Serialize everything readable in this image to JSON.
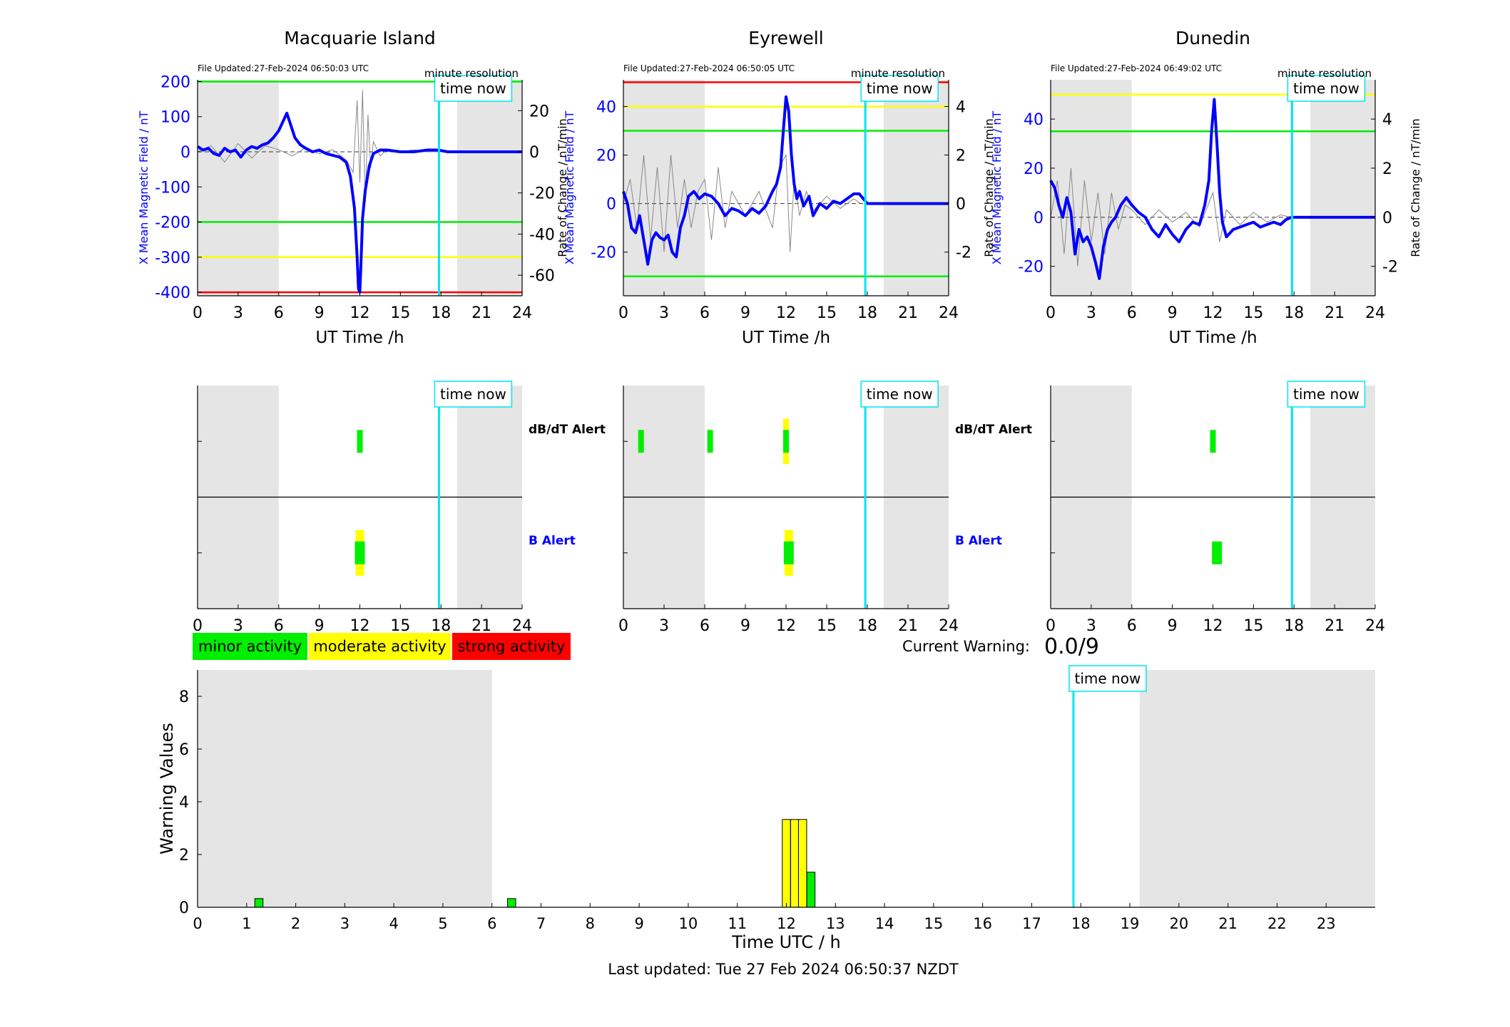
{
  "colors": {
    "night_shade": "#e5e5e5",
    "field_line": "#0000ff",
    "rate_line": "#888888",
    "now_line": "#00e5ee",
    "green": "#00ee00",
    "yellow": "#ffff00",
    "red": "#ff0000"
  },
  "labels": {
    "time_now": "time now",
    "minute_resolution": "minute resolution",
    "ut_xlabel": "UT Time /h",
    "left_ylabel": "X Mean Magnetic Field / nT",
    "right_ylabel": "Rate of Change / nT/min",
    "dbdt_alert": "dB/dT Alert",
    "b_alert": "B Alert",
    "current_warning_label": "Current Warning:",
    "current_warning_value": "0.0/9",
    "footer": "Last updated: Tue 27 Feb 2024 06:50:37 NZDT"
  },
  "legend": [
    {
      "label": "minor activity",
      "color": "#00ee00"
    },
    {
      "label": "moderate activity",
      "color": "#ffff00"
    },
    {
      "label": "strong activity",
      "color": "#ff0000"
    }
  ],
  "chart_data": [
    {
      "type": "line",
      "title": "Macquarie Island",
      "file_updated": "File Updated:27-Feb-2024 06:50:03 UTC",
      "xlabel": "UT Time /h",
      "xlim": [
        0,
        24
      ],
      "xticks": [
        0,
        3,
        6,
        9,
        12,
        15,
        18,
        21,
        24
      ],
      "ylabel": "X Mean Magnetic Field / nT",
      "ylim": [
        -410,
        205
      ],
      "yticks": [
        200,
        100,
        0,
        -100,
        -200,
        -300,
        -400
      ],
      "y2label": "Rate of Change / nT/min",
      "y2lim": [
        -70,
        35
      ],
      "y2ticks": [
        20,
        0,
        -20,
        -40,
        -60
      ],
      "night_shading": [
        [
          0,
          6
        ],
        [
          19.2,
          24
        ]
      ],
      "time_now": 17.85,
      "threshold_lines": [
        {
          "value": 200,
          "color": "green"
        },
        {
          "value": -200,
          "color": "green"
        },
        {
          "value": -300,
          "color": "yellow"
        },
        {
          "value": -400,
          "color": "red"
        }
      ],
      "series": [
        {
          "name": "X Mean Magnetic Field / nT",
          "x": [
            0,
            0.4,
            0.8,
            1.2,
            1.6,
            2.0,
            2.4,
            2.8,
            3.2,
            3.6,
            4.0,
            4.4,
            4.8,
            5.2,
            5.6,
            6.0,
            6.3,
            6.6,
            6.9,
            7.2,
            7.6,
            8.0,
            8.5,
            9.0,
            9.5,
            10.0,
            10.5,
            11.0,
            11.3,
            11.6,
            11.8,
            11.9,
            12.0,
            12.1,
            12.2,
            12.4,
            12.7,
            13.0,
            13.5,
            14.0,
            15.0,
            16.0,
            17.0,
            17.8,
            18.5,
            20,
            22,
            24
          ],
          "y": [
            15,
            5,
            10,
            -5,
            -10,
            10,
            0,
            5,
            -15,
            5,
            15,
            10,
            20,
            25,
            40,
            60,
            85,
            110,
            75,
            40,
            20,
            10,
            0,
            5,
            -5,
            -10,
            -15,
            -30,
            -70,
            -160,
            -300,
            -390,
            -400,
            -300,
            -190,
            -110,
            -40,
            -5,
            5,
            5,
            0,
            0,
            5,
            5,
            0,
            0,
            0,
            0
          ]
        },
        {
          "name": "Rate of Change / nT/min",
          "x": [
            0,
            1,
            2,
            3,
            4,
            5,
            6,
            7,
            8,
            9,
            10,
            11,
            11.5,
            11.8,
            12.0,
            12.2,
            12.4,
            12.6,
            12.8,
            13.0,
            13.5,
            14,
            15,
            16,
            17,
            17.8
          ],
          "y": [
            0,
            3,
            -5,
            4,
            -3,
            3,
            1,
            -2,
            2,
            -1,
            1,
            -4,
            -10,
            25,
            -15,
            30,
            -25,
            18,
            -8,
            5,
            -2,
            1,
            0,
            1,
            0,
            0
          ]
        }
      ]
    },
    {
      "type": "line",
      "title": "Eyrewell",
      "file_updated": "File Updated:27-Feb-2024 06:50:05 UTC",
      "xlabel": "UT Time /h",
      "xlim": [
        0,
        24
      ],
      "xticks": [
        0,
        3,
        6,
        9,
        12,
        15,
        18,
        21,
        24
      ],
      "ylabel": "X Mean Magnetic Field / nT",
      "ylim": [
        -38,
        51
      ],
      "yticks": [
        40,
        20,
        0,
        -20
      ],
      "y2label": "Rate of Change / nT/min",
      "y2lim": [
        -3.8,
        5.1
      ],
      "y2ticks": [
        4,
        2,
        0,
        -2
      ],
      "night_shading": [
        [
          0,
          6
        ],
        [
          19.2,
          24
        ]
      ],
      "time_now": 17.85,
      "threshold_lines": [
        {
          "value": 50,
          "color": "red"
        },
        {
          "value": 40,
          "color": "yellow"
        },
        {
          "value": 30,
          "color": "green"
        },
        {
          "value": -30,
          "color": "green"
        }
      ],
      "series": [
        {
          "name": "X Mean Magnetic Field / nT",
          "x": [
            0,
            0.3,
            0.6,
            0.9,
            1.2,
            1.5,
            1.8,
            2.1,
            2.4,
            2.7,
            3.0,
            3.3,
            3.6,
            3.9,
            4.2,
            4.5,
            4.8,
            5.2,
            5.6,
            6.0,
            6.5,
            7.0,
            7.5,
            8.0,
            8.5,
            9.0,
            9.5,
            10.0,
            10.5,
            11.0,
            11.3,
            11.6,
            11.8,
            12.0,
            12.2,
            12.4,
            12.6,
            12.8,
            13.0,
            13.3,
            13.7,
            14.0,
            14.5,
            15.0,
            15.5,
            16.0,
            16.5,
            17.0,
            17.4,
            18.0,
            20,
            22,
            24
          ],
          "y": [
            5,
            0,
            -10,
            -12,
            -5,
            -15,
            -25,
            -15,
            -12,
            -14,
            -15,
            -13,
            -20,
            -22,
            -10,
            -5,
            3,
            5,
            2,
            4,
            3,
            0,
            -5,
            -2,
            -3,
            -5,
            -2,
            -4,
            -1,
            5,
            8,
            15,
            30,
            44,
            38,
            20,
            8,
            2,
            5,
            -1,
            3,
            -5,
            0,
            -2,
            1,
            0,
            2,
            4,
            4,
            0,
            0,
            0,
            0
          ]
        },
        {
          "name": "Rate of Change / nT/min",
          "x": [
            0,
            0.5,
            1,
            1.5,
            2,
            2.5,
            3,
            3.5,
            4,
            4.5,
            5,
            5.5,
            6,
            6.5,
            7,
            7.5,
            8,
            9,
            10,
            11,
            11.5,
            12,
            12.3,
            12.6,
            13,
            13.5,
            14,
            15,
            16,
            17,
            17.5
          ],
          "y": [
            0,
            1,
            -1,
            2,
            -1.5,
            1.5,
            -2,
            2,
            -1,
            1,
            -1,
            0.5,
            1,
            -1.5,
            1.5,
            -1,
            0.5,
            -0.5,
            0.5,
            -1,
            1.5,
            2,
            -2,
            1,
            -0.5,
            0.5,
            -0.3,
            0.3,
            -0.2,
            0.2,
            0
          ]
        }
      ]
    },
    {
      "type": "line",
      "title": "Dunedin",
      "file_updated": "File Updated:27-Feb-2024 06:49:02 UTC",
      "xlabel": "UT Time /h",
      "xlim": [
        0,
        24
      ],
      "xticks": [
        0,
        3,
        6,
        9,
        12,
        15,
        18,
        21,
        24
      ],
      "ylabel": "X Mean Magnetic Field / nT",
      "ylim": [
        -32,
        56
      ],
      "yticks": [
        40,
        20,
        0,
        -20
      ],
      "y2label": "Rate of Change / nT/min",
      "y2lim": [
        -3.2,
        5.6
      ],
      "y2ticks": [
        4,
        2,
        0,
        -2
      ],
      "night_shading": [
        [
          0,
          6
        ],
        [
          19.2,
          24
        ]
      ],
      "time_now": 17.85,
      "threshold_lines": [
        {
          "value": 50,
          "color": "yellow"
        },
        {
          "value": 35,
          "color": "green"
        }
      ],
      "series": [
        {
          "name": "X Mean Magnetic Field / nT",
          "x": [
            0,
            0.3,
            0.6,
            0.9,
            1.2,
            1.5,
            1.8,
            2.1,
            2.4,
            2.7,
            3.0,
            3.3,
            3.6,
            3.9,
            4.2,
            4.5,
            4.8,
            5.2,
            5.6,
            6.0,
            6.5,
            7.0,
            7.5,
            8.0,
            8.5,
            9.0,
            9.5,
            10.0,
            10.5,
            11.0,
            11.4,
            11.7,
            11.9,
            12.1,
            12.3,
            12.5,
            12.7,
            13.0,
            13.5,
            14.0,
            14.5,
            15.0,
            15.5,
            16.0,
            16.5,
            17.0,
            17.4,
            17.8,
            20,
            22,
            24
          ],
          "y": [
            15,
            12,
            5,
            0,
            8,
            2,
            -15,
            -5,
            -10,
            -8,
            -12,
            -18,
            -25,
            -12,
            -5,
            -2,
            0,
            5,
            8,
            5,
            2,
            0,
            -5,
            -8,
            -3,
            -7,
            -10,
            -5,
            -2,
            -3,
            5,
            15,
            35,
            48,
            30,
            10,
            -2,
            -8,
            -5,
            -4,
            -3,
            -2,
            -4,
            -3,
            -2,
            -3,
            -1,
            0,
            0,
            0,
            0
          ]
        },
        {
          "name": "Rate of Change / nT/min",
          "x": [
            0,
            0.5,
            1,
            1.5,
            2,
            2.5,
            3,
            3.5,
            4,
            4.5,
            5,
            5.5,
            6,
            7,
            8,
            9,
            10,
            11,
            12,
            12.5,
            13,
            14,
            15,
            16,
            17,
            17.8
          ],
          "y": [
            0,
            1.5,
            -1.5,
            2,
            -2,
            1.5,
            -1,
            1,
            -1.5,
            1,
            -0.5,
            0.5,
            0.3,
            -0.3,
            0.3,
            -0.2,
            0.2,
            -0.4,
            1,
            -1,
            0.3,
            -0.3,
            0.2,
            -0.2,
            0.1,
            0
          ]
        }
      ]
    },
    {
      "type": "bar",
      "title": "",
      "xlabel": "Time UTC / h",
      "ylabel": "Warning Values",
      "xlim": [
        0,
        24
      ],
      "ylim": [
        0,
        9
      ],
      "xticks": [
        0,
        1,
        2,
        3,
        4,
        5,
        6,
        7,
        8,
        9,
        10,
        11,
        12,
        13,
        14,
        15,
        16,
        17,
        18,
        19,
        20,
        21,
        22,
        23
      ],
      "yticks": [
        0,
        2,
        4,
        6,
        8
      ],
      "night_shading": [
        [
          0,
          6
        ],
        [
          19.2,
          24
        ]
      ],
      "time_now": 17.85,
      "bars": [
        {
          "x": 1.25,
          "value": 0.33,
          "color": "green"
        },
        {
          "x": 6.4,
          "value": 0.33,
          "color": "green"
        },
        {
          "x": 12.0,
          "value": 3.33,
          "color": "yellow"
        },
        {
          "x": 12.17,
          "value": 3.33,
          "color": "yellow"
        },
        {
          "x": 12.33,
          "value": 3.33,
          "color": "yellow"
        },
        {
          "x": 12.5,
          "value": 1.33,
          "color": "green"
        }
      ]
    }
  ],
  "alert_panels": [
    {
      "dbdt": [
        {
          "x": 12.0,
          "core": "green",
          "halo": null
        }
      ],
      "b": [
        {
          "x": 12.0,
          "core": "green",
          "halo": "yellow"
        }
      ]
    },
    {
      "dbdt": [
        {
          "x": 1.3,
          "core": "green",
          "halo": null
        },
        {
          "x": 6.4,
          "core": "green",
          "halo": null
        },
        {
          "x": 12.0,
          "core": "green",
          "halo": "yellow"
        }
      ],
      "b": [
        {
          "x": 12.2,
          "core": "green",
          "halo": "yellow"
        }
      ]
    },
    {
      "dbdt": [
        {
          "x": 12.0,
          "core": "green",
          "halo": null
        }
      ],
      "b": [
        {
          "x": 12.3,
          "core": "green",
          "halo": null
        }
      ]
    }
  ]
}
